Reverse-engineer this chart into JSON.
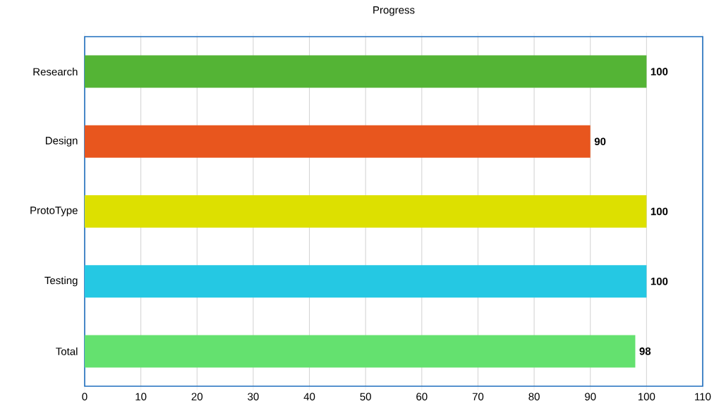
{
  "chart_data": {
    "type": "bar",
    "orientation": "horizontal",
    "title": "Progress",
    "categories": [
      "Research",
      "Design",
      "ProtoType",
      "Testing",
      "Total"
    ],
    "values": [
      100,
      90,
      100,
      100,
      98
    ],
    "colors": [
      "#54b435",
      "#e8561e",
      "#dde000",
      "#25c8e3",
      "#64e16f"
    ],
    "xlim": [
      0,
      110
    ],
    "xticks": [
      0,
      10,
      20,
      30,
      40,
      50,
      60,
      70,
      80,
      90,
      100,
      110
    ],
    "grid": "x",
    "data_labels": true
  }
}
